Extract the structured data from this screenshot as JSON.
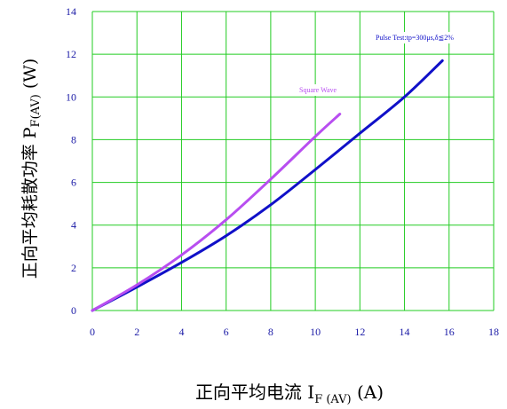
{
  "chart_data": {
    "type": "line",
    "ylabel": {
      "prefix": "正向平均耗散功率",
      "symbol": "P",
      "sub": "F(AV)",
      "unit": " (W)"
    },
    "xlabel": {
      "prefix": "正向平均电流 ",
      "symbol": "I",
      "sub": "F  (AV)",
      "unit": " (A)"
    },
    "xlim": [
      0,
      18
    ],
    "ylim": [
      0,
      14
    ],
    "xticks": [
      0,
      2,
      4,
      6,
      8,
      10,
      12,
      14,
      16,
      18
    ],
    "yticks": [
      0,
      2,
      4,
      6,
      8,
      10,
      12,
      14
    ],
    "grid": true,
    "colors": {
      "grid": "#22cc22",
      "tick_text": "#1a1aa6",
      "dc_line": "#1010c8",
      "square_line": "#b84ef0"
    },
    "series": [
      {
        "name": "",
        "annotation": "Pulse Test:tp=300μs,δ≦2%",
        "color": "#1010c8",
        "points": [
          [
            0,
            0
          ],
          [
            2,
            1.1
          ],
          [
            4,
            2.25
          ],
          [
            6,
            3.5
          ],
          [
            8,
            4.95
          ],
          [
            10,
            6.6
          ],
          [
            12,
            8.3
          ],
          [
            14,
            10.0
          ],
          [
            15.7,
            11.7
          ]
        ]
      },
      {
        "name": "",
        "annotation": "Square Wave",
        "color": "#b84ef0",
        "points": [
          [
            0,
            0
          ],
          [
            2,
            1.2
          ],
          [
            4,
            2.6
          ],
          [
            6,
            4.25
          ],
          [
            8,
            6.15
          ],
          [
            10,
            8.15
          ],
          [
            11.1,
            9.2
          ]
        ]
      }
    ]
  }
}
